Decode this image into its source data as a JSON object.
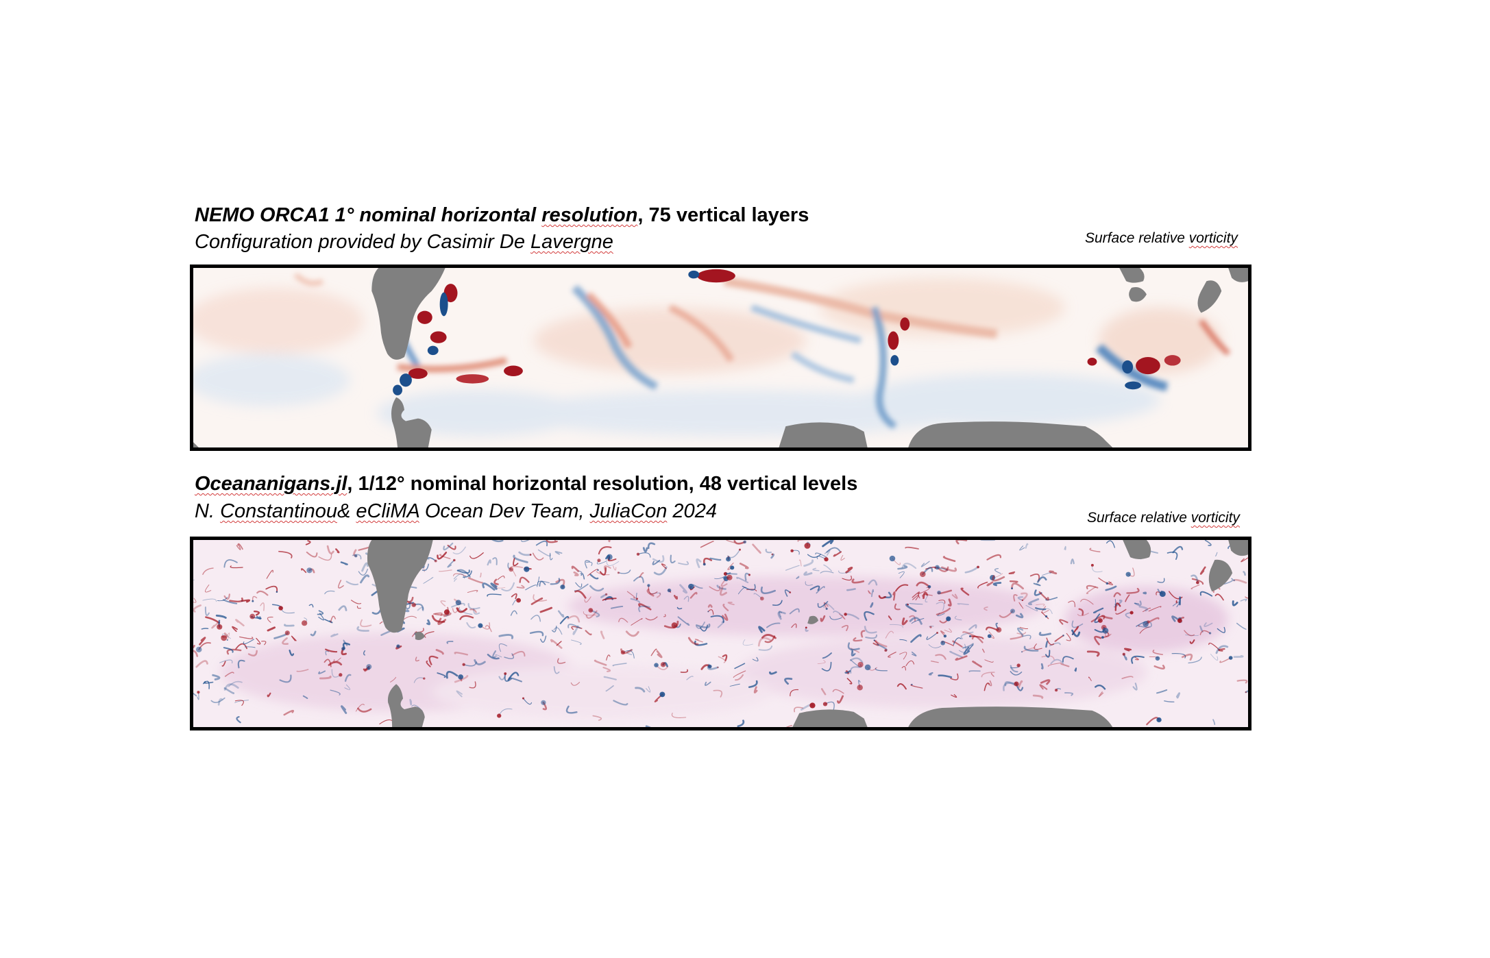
{
  "panel1": {
    "title_part1": "NEMO ORCA1 1° nominal horizontal ",
    "title_part2": "resolution",
    "title_part3": ", 75 vertical layers",
    "subtitle_part1": "Configuration provided by Casimir De ",
    "subtitle_part2": "Lavergne",
    "corner_label_part1": "Surface relative ",
    "corner_label_part2": "vorticity"
  },
  "panel2": {
    "title_part1": "Oceananigans.jl",
    "title_part2": ", 1/12° nominal horizontal resolution, 48 vertical levels",
    "subtitle_part1": "N. ",
    "subtitle_part2": "Constantinou",
    "subtitle_part3": "& ",
    "subtitle_part4": "eCliMA",
    "subtitle_part5": " Ocean Dev Team, ",
    "subtitle_part6": "JuliaCon",
    "subtitle_part7": " 2024",
    "corner_label_part1": "Surface relative ",
    "corner_label_part2": "vorticity"
  },
  "colors": {
    "positive": "#a31520",
    "negative": "#1c4f8c",
    "land": "#808080",
    "frame": "#000000"
  }
}
